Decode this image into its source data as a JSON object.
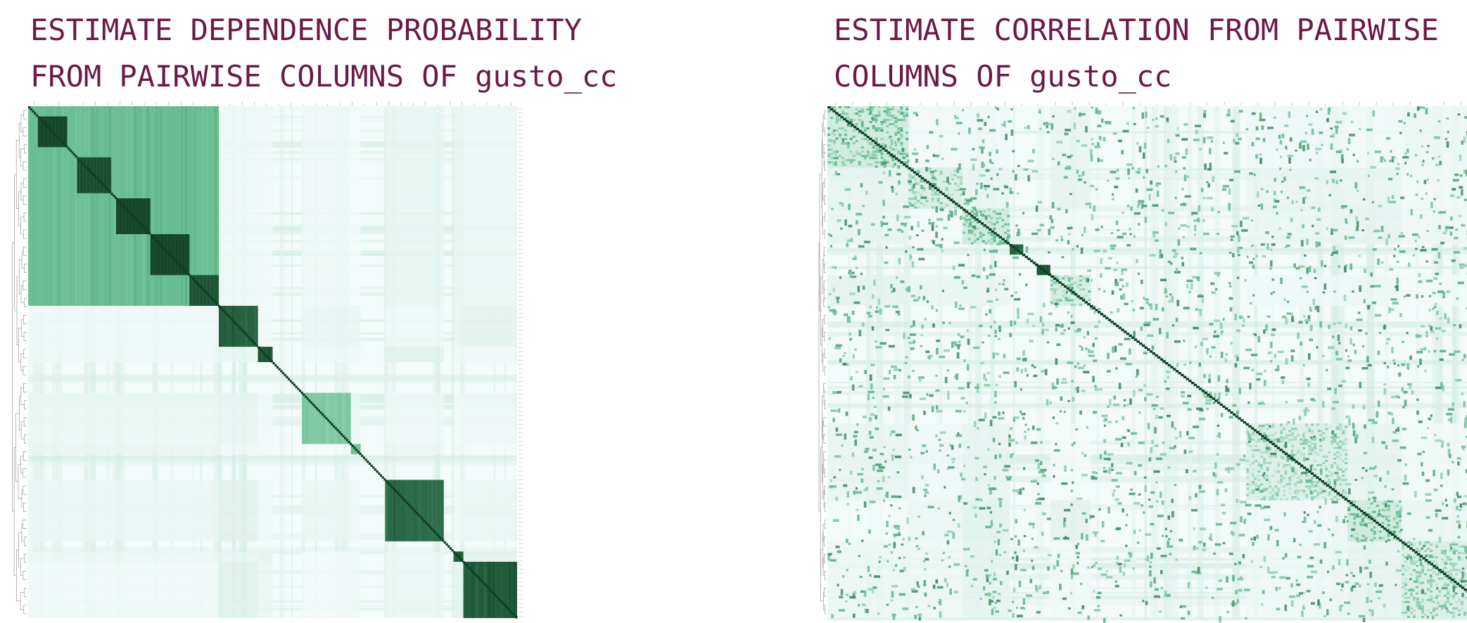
{
  "colors": {
    "title": "#6b1a47",
    "cmap_low": "#f2fafa",
    "cmap_mid": "#5cb88a",
    "cmap_high": "#0f3d23",
    "dendrogram": "#9a9a9a"
  },
  "chart_data": [
    {
      "type": "heatmap",
      "title_lines": [
        "ESTIMATE DEPENDENCE PROBABILITY",
        "FROM PAIRWISE COLUMNS OF gusto_cc"
      ],
      "xlabel": "",
      "ylabel": "",
      "value_range": [
        0,
        1
      ],
      "colormap": "white-to-dark-green",
      "row_dendrogram": "left",
      "column_labels": "hidden (tiny)",
      "n_variables": 320,
      "blocks": [
        {
          "start": 0.0,
          "end": 0.39,
          "value": 0.55
        },
        {
          "start": 0.39,
          "end": 0.47,
          "value": 0.88
        },
        {
          "start": 0.47,
          "end": 0.5,
          "value": 0.9
        },
        {
          "start": 0.56,
          "end": 0.66,
          "value": 0.45
        },
        {
          "start": 0.66,
          "end": 0.68,
          "value": 0.5
        },
        {
          "start": 0.73,
          "end": 0.85,
          "value": 0.85
        },
        {
          "start": 0.87,
          "end": 0.89,
          "value": 0.9
        },
        {
          "start": 0.89,
          "end": 1.0,
          "value": 0.9
        }
      ],
      "sub_blocks": [
        {
          "start": 0.02,
          "end": 0.08,
          "value": 0.95
        },
        {
          "start": 0.1,
          "end": 0.17,
          "value": 0.92
        },
        {
          "start": 0.18,
          "end": 0.25,
          "value": 0.95
        },
        {
          "start": 0.25,
          "end": 0.33,
          "value": 0.95
        },
        {
          "start": 0.33,
          "end": 0.39,
          "value": 0.9
        }
      ]
    },
    {
      "type": "heatmap",
      "title_lines": [
        "ESTIMATE CORRELATION FROM PAIRWISE",
        "COLUMNS OF gusto_cc"
      ],
      "xlabel": "",
      "ylabel": "",
      "value_range": [
        0,
        1
      ],
      "colormap": "white-to-dark-green",
      "row_dendrogram": "left",
      "column_labels": "hidden (tiny)",
      "n_variables": 320,
      "blocks": [
        {
          "start": 0.0,
          "end": 0.12,
          "value": 0.55
        },
        {
          "start": 0.12,
          "end": 0.2,
          "value": 0.4
        },
        {
          "start": 0.2,
          "end": 0.27,
          "value": 0.55
        },
        {
          "start": 0.33,
          "end": 0.39,
          "value": 0.45
        },
        {
          "start": 0.62,
          "end": 0.77,
          "value": 0.35
        },
        {
          "start": 0.77,
          "end": 0.85,
          "value": 0.55
        },
        {
          "start": 0.85,
          "end": 1.0,
          "value": 0.4
        }
      ],
      "sub_blocks": [
        {
          "start": 0.27,
          "end": 0.29,
          "value": 0.85
        },
        {
          "start": 0.31,
          "end": 0.33,
          "value": 0.9
        }
      ]
    }
  ]
}
